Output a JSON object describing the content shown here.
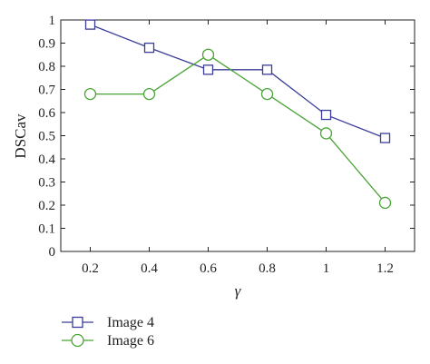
{
  "chart_data": {
    "type": "line",
    "x": [
      0.2,
      0.4,
      0.6,
      0.8,
      1,
      1.2
    ],
    "x_tick_labels": [
      "0.2",
      "0.4",
      "0.6",
      "0.8",
      "1",
      "1.2"
    ],
    "y_tick_labels": [
      "0",
      "0.1",
      "0.2",
      "0.3",
      "0.4",
      "0.5",
      "0.6",
      "0.7",
      "0.8",
      "0.9",
      "1"
    ],
    "xlim": [
      0.1,
      1.3
    ],
    "ylim": [
      0,
      1
    ],
    "xlabel": "γ",
    "ylabel": "DSCav",
    "grid": false,
    "legend_position": "bottom-left",
    "series": [
      {
        "name": "Image 4",
        "marker": "square",
        "color": "#3b3d9a",
        "values": [
          0.98,
          0.88,
          0.785,
          0.785,
          0.59,
          0.49
        ]
      },
      {
        "name": "Image 6",
        "marker": "circle",
        "color": "#4aa336",
        "values": [
          0.68,
          0.68,
          0.85,
          0.68,
          0.51,
          0.21
        ]
      }
    ]
  }
}
